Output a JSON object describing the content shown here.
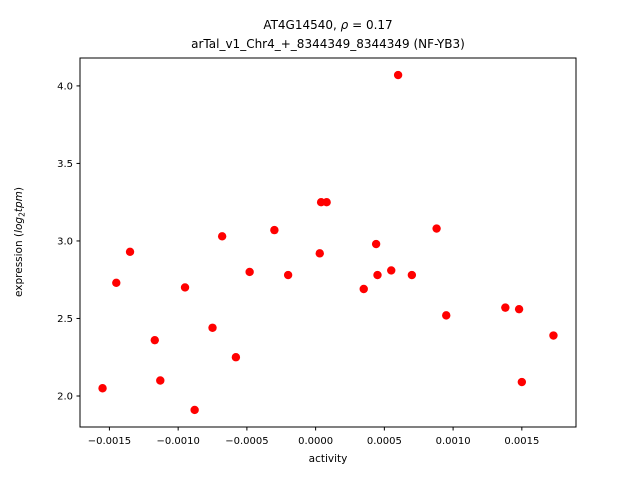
{
  "chart_data": {
    "type": "scatter",
    "title": "AT4G14540, ρ = 0.17",
    "subtitle": "arTal_v1_Chr4_+_8344349_8344349 (NF-YB3)",
    "title_parts": {
      "prefix": "AT4G14540, ",
      "rho": "ρ",
      "rest": " = 0.17"
    },
    "xlabel": "activity",
    "ylabel": "expression (log₂tpm)",
    "ylabel_parts": {
      "prefix": "expression (",
      "log": "log",
      "sub": "2",
      "tpm": "tpm",
      "suffix": ")"
    },
    "xlim": [
      -0.001714,
      0.001894
    ],
    "ylim": [
      1.8,
      4.18
    ],
    "xticks": [
      -0.0015,
      -0.001,
      -0.0005,
      0.0,
      0.0005,
      0.001,
      0.0015
    ],
    "xtick_labels": [
      "−0.0015",
      "−0.0010",
      "−0.0005",
      "0.0000",
      "0.0005",
      "0.0010",
      "0.0015"
    ],
    "yticks": [
      2.0,
      2.5,
      3.0,
      3.5,
      4.0
    ],
    "ytick_labels": [
      "2.0",
      "2.5",
      "3.0",
      "3.5",
      "4.0"
    ],
    "marker_color": "#ff0000",
    "marker_radius": 4.2,
    "grid": false,
    "legend": "none",
    "points": [
      [
        -0.00155,
        2.05
      ],
      [
        -0.00145,
        2.73
      ],
      [
        -0.00135,
        2.93
      ],
      [
        -0.00117,
        2.36
      ],
      [
        -0.00113,
        2.1
      ],
      [
        -0.00095,
        2.7
      ],
      [
        -0.00088,
        1.91
      ],
      [
        -0.00075,
        2.44
      ],
      [
        -0.00068,
        3.03
      ],
      [
        -0.00058,
        2.25
      ],
      [
        -0.00048,
        2.8
      ],
      [
        -0.0003,
        3.07
      ],
      [
        -0.0002,
        2.78
      ],
      [
        3e-05,
        2.92
      ],
      [
        4e-05,
        3.25
      ],
      [
        8e-05,
        3.25
      ],
      [
        0.00035,
        2.69
      ],
      [
        0.00044,
        2.98
      ],
      [
        0.00045,
        2.78
      ],
      [
        0.00055,
        2.81
      ],
      [
        0.0006,
        4.07
      ],
      [
        0.0007,
        2.78
      ],
      [
        0.00088,
        3.08
      ],
      [
        0.00095,
        2.52
      ],
      [
        0.00138,
        2.57
      ],
      [
        0.00148,
        2.56
      ],
      [
        0.0015,
        2.09
      ],
      [
        0.00173,
        2.39
      ]
    ]
  }
}
